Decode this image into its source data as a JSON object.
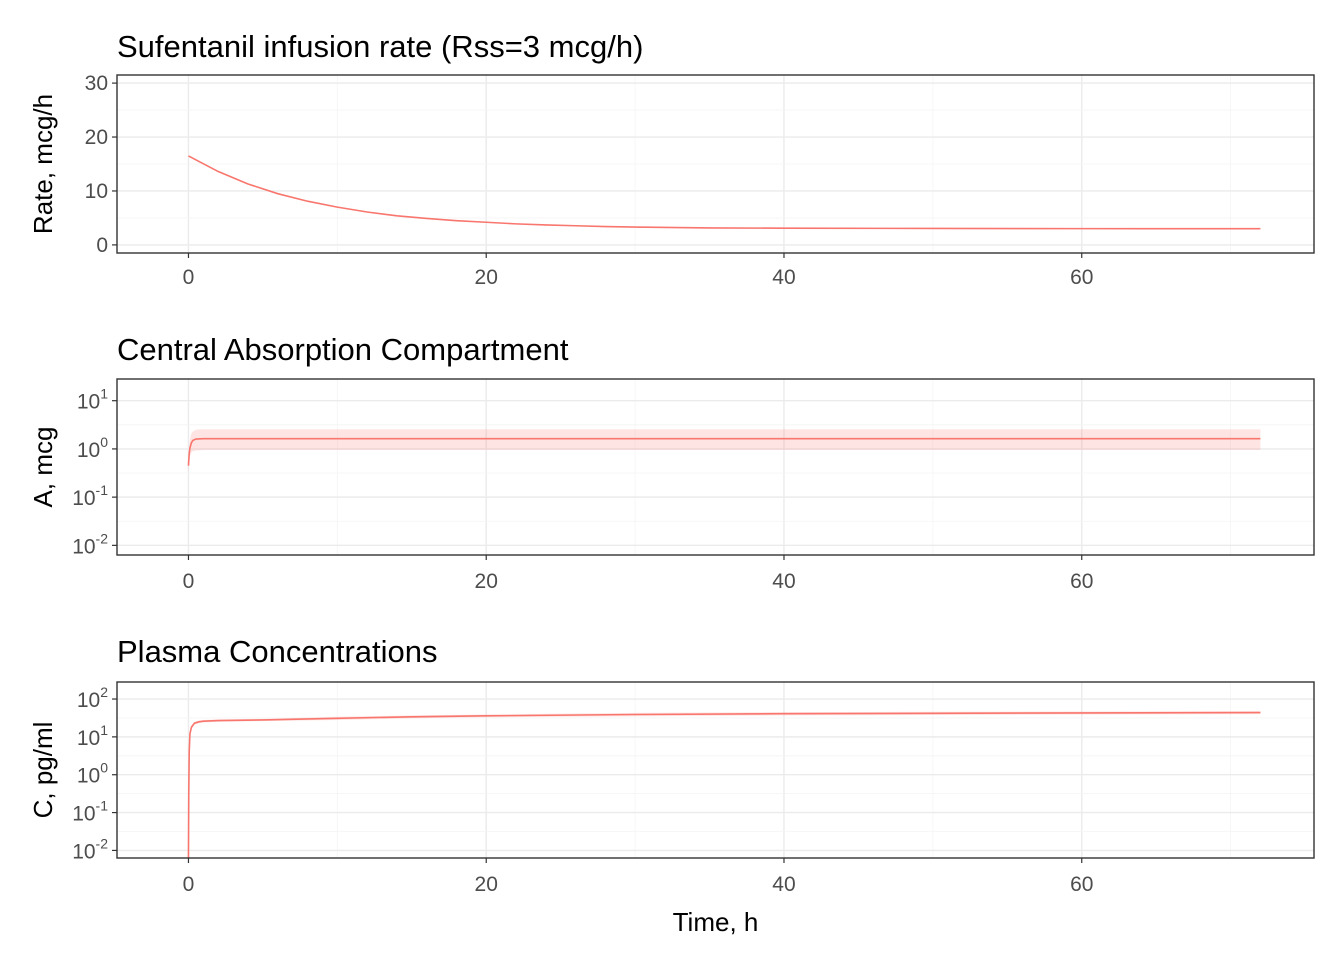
{
  "chart_data": [
    {
      "type": "line",
      "title": "Sufentanil infusion rate (Rss=3 mcg/h)",
      "xlabel": "",
      "ylabel": "Rate, mcg/h",
      "xlim": [
        -4.8,
        75.6
      ],
      "ylim": [
        -1.5,
        31.5
      ],
      "xticks": [
        0,
        20,
        40,
        60
      ],
      "yticks": [
        0,
        10,
        20,
        30
      ],
      "ylog": false,
      "grid": true,
      "color": "#F8766D",
      "series": [
        {
          "x": [
            0,
            2,
            4,
            6,
            8,
            10,
            12,
            14,
            16,
            18,
            20,
            22,
            24,
            26,
            28,
            30,
            35,
            40,
            50,
            60,
            72
          ],
          "y": [
            16.5,
            13.6,
            11.3,
            9.5,
            8.1,
            7.0,
            6.1,
            5.4,
            4.9,
            4.5,
            4.2,
            3.9,
            3.7,
            3.55,
            3.4,
            3.3,
            3.15,
            3.1,
            3.05,
            3.02,
            3.0
          ]
        }
      ]
    },
    {
      "type": "line",
      "title": "Central Absorption Compartment",
      "xlabel": "",
      "ylabel": "A, mcg",
      "xlim": [
        -4.8,
        75.6
      ],
      "ylim_log10": [
        -2.2,
        1.45
      ],
      "xticks": [
        0,
        20,
        40,
        60
      ],
      "yticks_exp": [
        -2,
        -1,
        0,
        1
      ],
      "ylog": true,
      "grid": true,
      "color": "#F8766D",
      "series": [
        {
          "x": [
            0,
            0.05,
            0.1,
            0.2,
            0.3,
            0.5,
            0.8,
            1,
            2,
            72
          ],
          "y": [
            0.45,
            0.8,
            1.05,
            1.35,
            1.5,
            1.6,
            1.62,
            1.63,
            1.63,
            1.63
          ],
          "lower": [
            0.3,
            0.55,
            0.7,
            0.85,
            0.9,
            0.93,
            0.94,
            0.95,
            0.95,
            0.95
          ],
          "upper": [
            0.7,
            1.2,
            1.6,
            2.1,
            2.3,
            2.5,
            2.55,
            2.55,
            2.55,
            2.55
          ]
        }
      ]
    },
    {
      "type": "line",
      "title": "Plasma Concentrations",
      "xlabel": "Time, h",
      "ylabel": "C, pg/ml",
      "xlim": [
        -4.8,
        75.6
      ],
      "ylim_log10": [
        -2.2,
        2.45
      ],
      "xticks": [
        0,
        20,
        40,
        60
      ],
      "yticks_exp": [
        -2,
        -1,
        0,
        1,
        2
      ],
      "ylog": true,
      "grid": true,
      "color": "#F8766D",
      "series": [
        {
          "x": [
            0,
            0.02,
            0.05,
            0.1,
            0.2,
            0.4,
            0.7,
            1,
            2,
            5,
            10,
            15,
            20,
            30,
            40,
            50,
            60,
            72
          ],
          "y": [
            0.006,
            0.3,
            4,
            12,
            18,
            23,
            25,
            26,
            27,
            28,
            31,
            34,
            36,
            39,
            41,
            42,
            43,
            44
          ],
          "lower": [
            0.005,
            0.25,
            3.5,
            10,
            16,
            21,
            23,
            24,
            25,
            26,
            28,
            31,
            33,
            35,
            37,
            38,
            39,
            40
          ],
          "upper": [
            0.007,
            0.35,
            4.5,
            14,
            20,
            25,
            27,
            28,
            29,
            30,
            34,
            37,
            39,
            43,
            45,
            46,
            47,
            48
          ]
        }
      ]
    }
  ]
}
